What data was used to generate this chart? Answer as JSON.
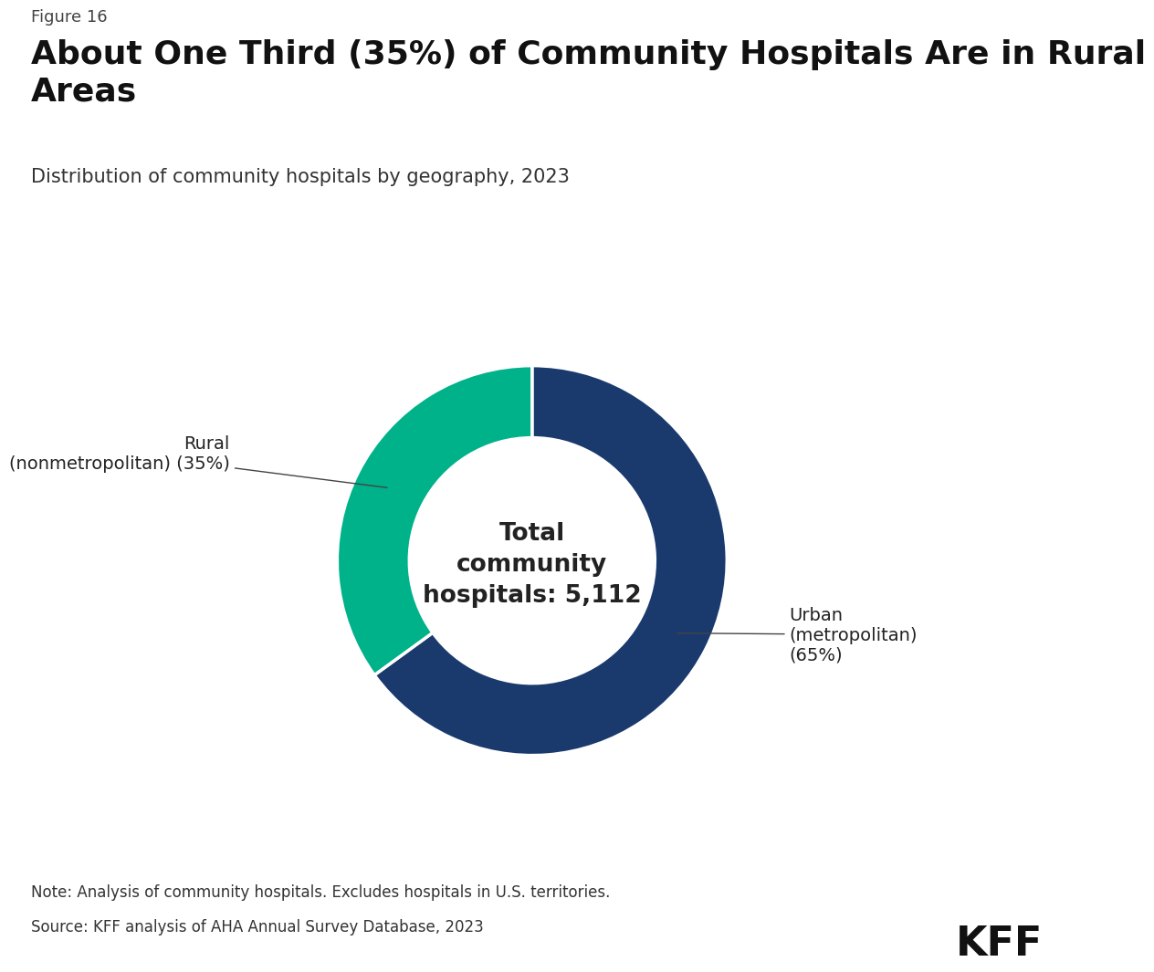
{
  "figure_label": "Figure 16",
  "title": "About One Third (35%) of Community Hospitals Are in Rural\nAreas",
  "subtitle": "Distribution of community hospitals by geography, 2023",
  "center_text_line1": "Total",
  "center_text_line2": "community",
  "center_text_line3": "hospitals: 5,112",
  "slices": [
    65,
    35
  ],
  "colors": [
    "#1a3a6e",
    "#00b28a"
  ],
  "note_line1": "Note: Analysis of community hospitals. Excludes hospitals in U.S. territories.",
  "note_line2": "Source: KFF analysis of AHA Annual Survey Database, 2023",
  "kff_label": "KFF",
  "background_color": "#ffffff",
  "donut_width": 0.37
}
